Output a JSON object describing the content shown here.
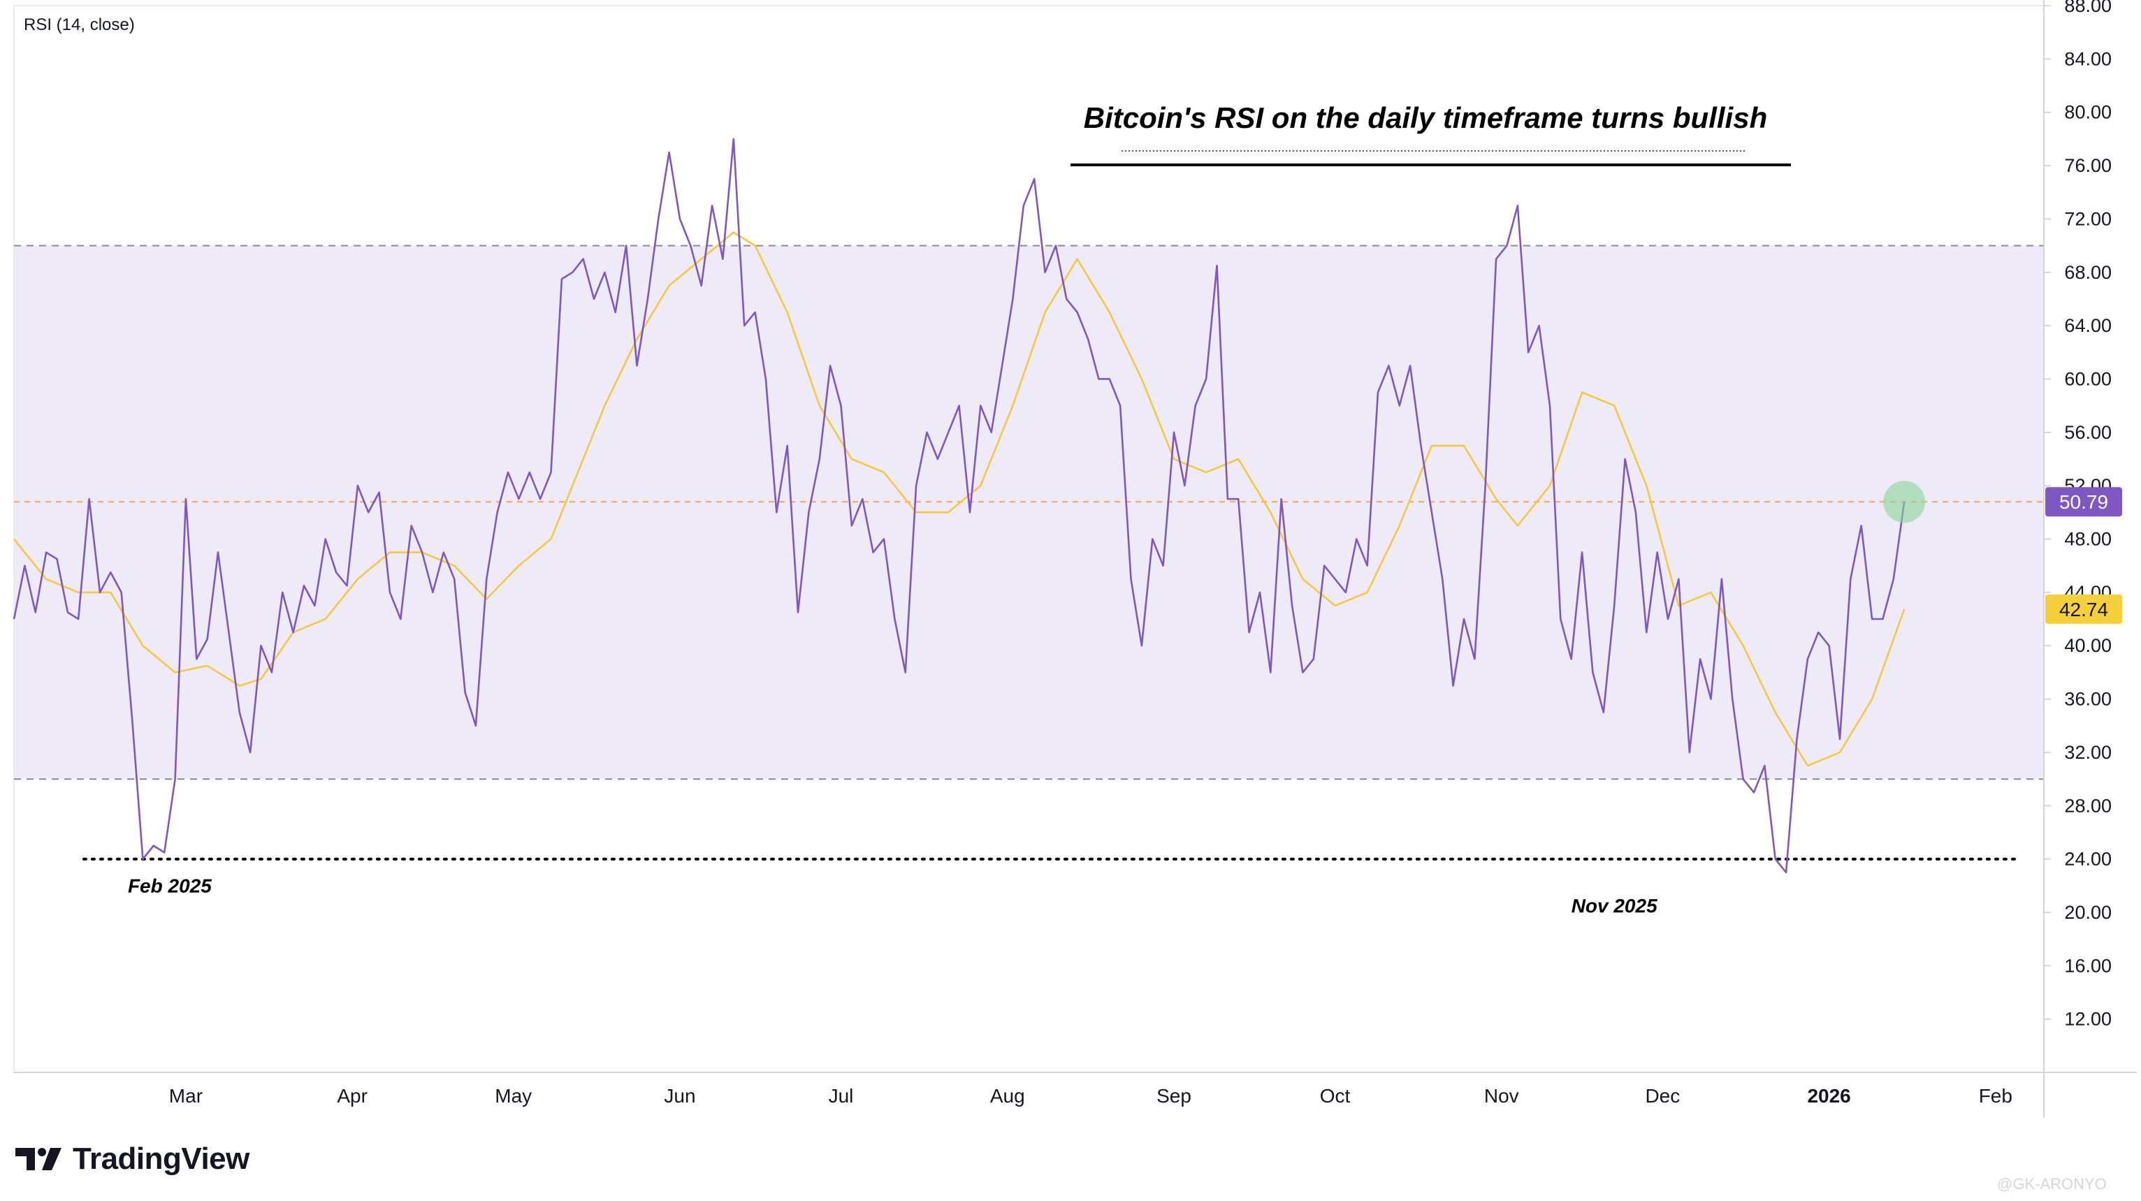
{
  "indicator_label": "RSI (14, close)",
  "brand": {
    "name": "TradingView"
  },
  "watermark": "@GK-ARONYO",
  "colors": {
    "rsi_line": "#7e57c2",
    "ma_line": "#f5c842",
    "band_fill": "#efeaf8",
    "band_line": "#8a8a99",
    "level_line": "#f5a45a",
    "rsi_badge": "#7e57c2",
    "ma_badge": "#f5d03a",
    "highlight": "#8bd39a"
  },
  "chart_data": {
    "type": "line",
    "title": "Bitcoin's RSI on the daily timeframe turns bullish",
    "xlabel": "",
    "ylabel": "",
    "ylim": [
      8,
      88
    ],
    "y_ticks": [
      "88.00",
      "84.00",
      "80.00",
      "76.00",
      "72.00",
      "68.00",
      "64.00",
      "60.00",
      "56.00",
      "52.00",
      "48.00",
      "44.00",
      "40.00",
      "36.00",
      "32.00",
      "28.00",
      "24.00",
      "20.00",
      "16.00",
      "12.00"
    ],
    "x_ticks": [
      {
        "label": "Mar",
        "x": "2025-03-01"
      },
      {
        "label": "Apr",
        "x": "2025-04-01"
      },
      {
        "label": "May",
        "x": "2025-05-01"
      },
      {
        "label": "Jun",
        "x": "2025-06-01"
      },
      {
        "label": "Jul",
        "x": "2025-07-01"
      },
      {
        "label": "Aug",
        "x": "2025-08-01"
      },
      {
        "label": "Sep",
        "x": "2025-09-01"
      },
      {
        "label": "Oct",
        "x": "2025-10-01"
      },
      {
        "label": "Nov",
        "x": "2025-11-01"
      },
      {
        "label": "Dec",
        "x": "2025-12-01"
      },
      {
        "label": "2026",
        "x": "2026-01-01"
      },
      {
        "label": "Feb",
        "x": "2026-02-01"
      }
    ],
    "x_range": [
      "2025-01-28",
      "2026-02-10"
    ],
    "bands": {
      "upper": 70,
      "lower": 30
    },
    "level_line": 50.79,
    "support_line": {
      "y": 24,
      "from": "2025-02-10",
      "to": "2026-02-05"
    },
    "current": {
      "rsi": "50.79",
      "ma": "42.74"
    },
    "annotations": [
      {
        "text": "Feb 2025",
        "x": "2025-02-26",
        "y": 21.5
      },
      {
        "text": "Nov 2025",
        "x": "2025-11-22",
        "y": 20.0
      }
    ],
    "series": [
      {
        "points": [
          [
            "2025-01-28",
            42
          ],
          [
            "2025-01-30",
            46
          ],
          [
            "2025-02-01",
            42.5
          ],
          [
            "2025-02-03",
            47
          ],
          [
            "2025-02-05",
            46.5
          ],
          [
            "2025-02-07",
            42.5
          ],
          [
            "2025-02-09",
            42
          ],
          [
            "2025-02-11",
            51
          ],
          [
            "2025-02-13",
            44
          ],
          [
            "2025-02-15",
            45.5
          ],
          [
            "2025-02-17",
            44
          ],
          [
            "2025-02-19",
            34.5
          ],
          [
            "2025-02-21",
            24
          ],
          [
            "2025-02-23",
            25
          ],
          [
            "2025-02-25",
            24.5
          ],
          [
            "2025-02-27",
            30
          ],
          [
            "2025-03-01",
            51
          ],
          [
            "2025-03-03",
            39
          ],
          [
            "2025-03-05",
            40.5
          ],
          [
            "2025-03-07",
            47
          ],
          [
            "2025-03-09",
            41
          ],
          [
            "2025-03-11",
            35
          ],
          [
            "2025-03-13",
            32
          ],
          [
            "2025-03-15",
            40
          ],
          [
            "2025-03-17",
            38
          ],
          [
            "2025-03-19",
            44
          ],
          [
            "2025-03-21",
            41
          ],
          [
            "2025-03-23",
            44.5
          ],
          [
            "2025-03-25",
            43
          ],
          [
            "2025-03-27",
            48
          ],
          [
            "2025-03-29",
            45.5
          ],
          [
            "2025-03-31",
            44.5
          ],
          [
            "2025-04-02",
            52
          ],
          [
            "2025-04-04",
            50
          ],
          [
            "2025-04-06",
            51.5
          ],
          [
            "2025-04-08",
            44
          ],
          [
            "2025-04-10",
            42
          ],
          [
            "2025-04-12",
            49
          ],
          [
            "2025-04-14",
            47
          ],
          [
            "2025-04-16",
            44
          ],
          [
            "2025-04-18",
            47
          ],
          [
            "2025-04-20",
            45
          ],
          [
            "2025-04-22",
            36.5
          ],
          [
            "2025-04-24",
            34
          ],
          [
            "2025-04-26",
            45
          ],
          [
            "2025-04-28",
            50
          ],
          [
            "2025-04-30",
            53
          ],
          [
            "2025-05-02",
            51
          ],
          [
            "2025-05-04",
            53
          ],
          [
            "2025-05-06",
            51
          ],
          [
            "2025-05-08",
            53
          ],
          [
            "2025-05-10",
            67.5
          ],
          [
            "2025-05-12",
            68
          ],
          [
            "2025-05-14",
            69
          ],
          [
            "2025-05-16",
            66
          ],
          [
            "2025-05-18",
            68
          ],
          [
            "2025-05-20",
            65
          ],
          [
            "2025-05-22",
            70
          ],
          [
            "2025-05-24",
            61
          ],
          [
            "2025-05-26",
            66
          ],
          [
            "2025-05-28",
            72
          ],
          [
            "2025-05-30",
            77
          ],
          [
            "2025-06-01",
            72
          ],
          [
            "2025-06-03",
            70
          ],
          [
            "2025-06-05",
            67
          ],
          [
            "2025-06-07",
            73
          ],
          [
            "2025-06-09",
            69
          ],
          [
            "2025-06-11",
            78
          ],
          [
            "2025-06-13",
            64
          ],
          [
            "2025-06-15",
            65
          ],
          [
            "2025-06-17",
            60
          ],
          [
            "2025-06-19",
            50
          ],
          [
            "2025-06-21",
            55
          ],
          [
            "2025-06-23",
            42.5
          ],
          [
            "2025-06-25",
            50
          ],
          [
            "2025-06-27",
            54
          ],
          [
            "2025-06-29",
            61
          ],
          [
            "2025-07-01",
            58
          ],
          [
            "2025-07-03",
            49
          ],
          [
            "2025-07-05",
            51
          ],
          [
            "2025-07-07",
            47
          ],
          [
            "2025-07-09",
            48
          ],
          [
            "2025-07-11",
            42
          ],
          [
            "2025-07-13",
            38
          ],
          [
            "2025-07-15",
            52
          ],
          [
            "2025-07-17",
            56
          ],
          [
            "2025-07-19",
            54
          ],
          [
            "2025-07-21",
            56
          ],
          [
            "2025-07-23",
            58
          ],
          [
            "2025-07-25",
            50
          ],
          [
            "2025-07-27",
            58
          ],
          [
            "2025-07-29",
            56
          ],
          [
            "2025-07-31",
            61
          ],
          [
            "2025-08-02",
            66
          ],
          [
            "2025-08-04",
            73
          ],
          [
            "2025-08-06",
            75
          ],
          [
            "2025-08-08",
            68
          ],
          [
            "2025-08-10",
            70
          ],
          [
            "2025-08-12",
            66
          ],
          [
            "2025-08-14",
            65
          ],
          [
            "2025-08-16",
            63
          ],
          [
            "2025-08-18",
            60
          ],
          [
            "2025-08-20",
            60
          ],
          [
            "2025-08-22",
            58
          ],
          [
            "2025-08-24",
            45
          ],
          [
            "2025-08-26",
            40
          ],
          [
            "2025-08-28",
            48
          ],
          [
            "2025-08-30",
            46
          ],
          [
            "2025-09-01",
            56
          ],
          [
            "2025-09-03",
            52
          ],
          [
            "2025-09-05",
            58
          ],
          [
            "2025-09-07",
            60
          ],
          [
            "2025-09-09",
            68.5
          ],
          [
            "2025-09-11",
            51
          ],
          [
            "2025-09-13",
            51
          ],
          [
            "2025-09-15",
            41
          ],
          [
            "2025-09-17",
            44
          ],
          [
            "2025-09-19",
            38
          ],
          [
            "2025-09-21",
            51
          ],
          [
            "2025-09-23",
            43
          ],
          [
            "2025-09-25",
            38
          ],
          [
            "2025-09-27",
            39
          ],
          [
            "2025-09-29",
            46
          ],
          [
            "2025-10-01",
            45
          ],
          [
            "2025-10-03",
            44
          ],
          [
            "2025-10-05",
            48
          ],
          [
            "2025-10-07",
            46
          ],
          [
            "2025-10-09",
            59
          ],
          [
            "2025-10-11",
            61
          ],
          [
            "2025-10-13",
            58
          ],
          [
            "2025-10-15",
            61
          ],
          [
            "2025-10-17",
            55
          ],
          [
            "2025-10-19",
            50
          ],
          [
            "2025-10-21",
            45
          ],
          [
            "2025-10-23",
            37
          ],
          [
            "2025-10-25",
            42
          ],
          [
            "2025-10-27",
            39
          ],
          [
            "2025-10-29",
            52
          ],
          [
            "2025-10-31",
            69
          ],
          [
            "2025-11-02",
            70
          ],
          [
            "2025-11-04",
            73
          ],
          [
            "2025-11-06",
            62
          ],
          [
            "2025-11-08",
            64
          ],
          [
            "2025-11-10",
            58
          ],
          [
            "2025-11-12",
            42
          ],
          [
            "2025-11-14",
            39
          ],
          [
            "2025-11-16",
            47
          ],
          [
            "2025-11-18",
            38
          ],
          [
            "2025-11-20",
            35
          ],
          [
            "2025-11-22",
            43
          ],
          [
            "2025-11-24",
            54
          ],
          [
            "2025-11-26",
            50
          ],
          [
            "2025-11-28",
            41
          ],
          [
            "2025-11-30",
            47
          ],
          [
            "2025-12-02",
            42
          ],
          [
            "2025-12-04",
            45
          ],
          [
            "2025-12-06",
            32
          ],
          [
            "2025-12-08",
            39
          ],
          [
            "2025-12-10",
            36
          ],
          [
            "2025-12-12",
            45
          ],
          [
            "2025-12-14",
            36
          ],
          [
            "2025-12-16",
            30
          ],
          [
            "2025-12-18",
            29
          ],
          [
            "2025-12-20",
            31
          ],
          [
            "2025-12-22",
            24
          ],
          [
            "2025-12-24",
            23
          ],
          [
            "2025-12-26",
            33
          ],
          [
            "2025-12-28",
            39
          ],
          [
            "2025-12-30",
            41
          ],
          [
            "2026-01-01",
            40
          ],
          [
            "2026-01-03",
            33
          ],
          [
            "2026-01-05",
            45
          ],
          [
            "2026-01-07",
            49
          ],
          [
            "2026-01-09",
            42
          ],
          [
            "2026-01-11",
            42
          ],
          [
            "2026-01-13",
            45
          ],
          [
            "2026-01-15",
            50.79
          ]
        ]
      },
      {
        "points": [
          [
            "2025-01-28",
            48
          ],
          [
            "2025-02-03",
            45
          ],
          [
            "2025-02-09",
            44
          ],
          [
            "2025-02-15",
            44
          ],
          [
            "2025-02-21",
            40
          ],
          [
            "2025-02-27",
            38
          ],
          [
            "2025-03-05",
            38.5
          ],
          [
            "2025-03-11",
            37
          ],
          [
            "2025-03-15",
            37.5
          ],
          [
            "2025-03-21",
            41
          ],
          [
            "2025-03-27",
            42
          ],
          [
            "2025-04-02",
            45
          ],
          [
            "2025-04-08",
            47
          ],
          [
            "2025-04-14",
            47
          ],
          [
            "2025-04-20",
            46
          ],
          [
            "2025-04-26",
            43.5
          ],
          [
            "2025-05-02",
            46
          ],
          [
            "2025-05-08",
            48
          ],
          [
            "2025-05-12",
            52
          ],
          [
            "2025-05-18",
            58
          ],
          [
            "2025-05-24",
            63
          ],
          [
            "2025-05-30",
            67
          ],
          [
            "2025-06-05",
            69
          ],
          [
            "2025-06-11",
            71
          ],
          [
            "2025-06-15",
            70
          ],
          [
            "2025-06-21",
            65
          ],
          [
            "2025-06-27",
            58
          ],
          [
            "2025-07-03",
            54
          ],
          [
            "2025-07-09",
            53
          ],
          [
            "2025-07-15",
            50
          ],
          [
            "2025-07-21",
            50
          ],
          [
            "2025-07-27",
            52
          ],
          [
            "2025-08-02",
            58
          ],
          [
            "2025-08-08",
            65
          ],
          [
            "2025-08-14",
            69
          ],
          [
            "2025-08-20",
            65
          ],
          [
            "2025-08-26",
            60
          ],
          [
            "2025-09-01",
            54
          ],
          [
            "2025-09-07",
            53
          ],
          [
            "2025-09-13",
            54
          ],
          [
            "2025-09-19",
            50
          ],
          [
            "2025-09-25",
            45
          ],
          [
            "2025-10-01",
            43
          ],
          [
            "2025-10-07",
            44
          ],
          [
            "2025-10-13",
            49
          ],
          [
            "2025-10-19",
            55
          ],
          [
            "2025-10-25",
            55
          ],
          [
            "2025-10-31",
            51
          ],
          [
            "2025-11-04",
            49
          ],
          [
            "2025-11-10",
            52
          ],
          [
            "2025-11-16",
            59
          ],
          [
            "2025-11-22",
            58
          ],
          [
            "2025-11-28",
            52
          ],
          [
            "2025-12-04",
            43
          ],
          [
            "2025-12-10",
            44
          ],
          [
            "2025-12-16",
            40
          ],
          [
            "2025-12-22",
            35
          ],
          [
            "2025-12-28",
            31
          ],
          [
            "2026-01-03",
            32
          ],
          [
            "2026-01-09",
            36
          ],
          [
            "2026-01-15",
            42.74
          ]
        ]
      }
    ]
  }
}
